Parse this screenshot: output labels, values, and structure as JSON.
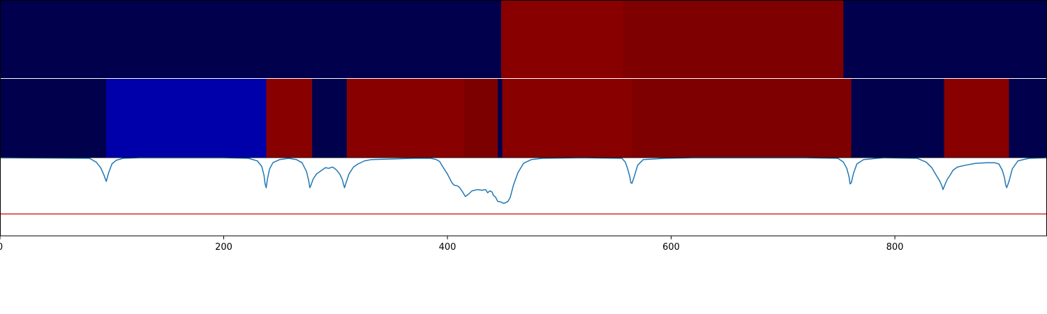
{
  "chart_data": [
    {
      "type": "heatmap",
      "xlim": [
        0,
        936
      ],
      "segments": [
        {
          "start": 0,
          "end": 448,
          "color": "#00004c"
        },
        {
          "start": 448,
          "end": 557,
          "color": "#880000"
        },
        {
          "start": 557,
          "end": 754,
          "color": "#7f0000"
        },
        {
          "start": 754,
          "end": 936,
          "color": "#00004c"
        }
      ]
    },
    {
      "type": "heatmap",
      "xlim": [
        0,
        936
      ],
      "segments": [
        {
          "start": 0,
          "end": 95,
          "color": "#00004c"
        },
        {
          "start": 95,
          "end": 238,
          "color": "#0000ab"
        },
        {
          "start": 238,
          "end": 279,
          "color": "#880000"
        },
        {
          "start": 279,
          "end": 310,
          "color": "#00004c"
        },
        {
          "start": 310,
          "end": 415,
          "color": "#880000"
        },
        {
          "start": 415,
          "end": 445,
          "color": "#7d0000"
        },
        {
          "start": 445,
          "end": 449,
          "color": "#00004c"
        },
        {
          "start": 449,
          "end": 565,
          "color": "#880000"
        },
        {
          "start": 565,
          "end": 761,
          "color": "#7f0000"
        },
        {
          "start": 761,
          "end": 844,
          "color": "#00004c"
        },
        {
          "start": 844,
          "end": 902,
          "color": "#880000"
        },
        {
          "start": 902,
          "end": 936,
          "color": "#00004c"
        }
      ]
    },
    {
      "type": "line",
      "xlim": [
        0,
        936
      ],
      "ylim": [
        -0.25,
        1.0
      ],
      "threshold": 0.1,
      "threshold_color": "#d62728",
      "line_color": "#1f77b4",
      "x_ticks": [
        {
          "value": 0,
          "label": "0"
        },
        {
          "value": 200,
          "label": "200"
        },
        {
          "value": 400,
          "label": "400"
        },
        {
          "value": 600,
          "label": "600"
        },
        {
          "value": 800,
          "label": "800"
        }
      ],
      "series": [
        {
          "x": [
            0,
            80,
            86,
            90,
            93,
            95,
            97,
            100,
            104,
            110,
            125,
            200,
            222,
            230,
            234,
            236,
            237,
            238,
            239,
            241,
            244,
            250,
            258,
            265,
            270,
            274,
            276,
            277,
            278,
            280,
            283,
            287,
            291,
            294,
            297,
            299,
            301,
            304,
            306,
            307,
            308,
            309,
            312,
            316,
            320,
            326,
            332,
            370,
            385,
            390,
            393,
            396,
            400,
            404,
            406,
            409,
            411,
            414,
            416,
            419,
            422,
            427,
            431,
            434,
            436,
            438,
            440,
            441,
            443,
            445,
            446,
            448,
            450,
            452,
            454,
            456,
            459,
            463,
            468,
            475,
            485,
            520,
            556,
            559,
            561,
            563,
            564,
            565,
            567,
            570,
            575,
            595,
            620,
            720,
            749,
            754,
            757,
            759,
            760,
            761,
            763,
            766,
            772,
            790,
            820,
            828,
            833,
            837,
            840,
            842,
            843,
            845,
            847,
            849,
            852,
            856,
            863,
            872,
            882,
            889,
            893,
            896,
            898,
            899,
            900,
            902,
            905,
            910,
            920,
            936
          ],
          "y": [
            1.0,
            0.99,
            0.93,
            0.84,
            0.72,
            0.62,
            0.75,
            0.9,
            0.96,
            0.99,
            1.0,
            1.0,
            0.99,
            0.95,
            0.86,
            0.72,
            0.58,
            0.52,
            0.65,
            0.82,
            0.92,
            0.97,
            0.99,
            0.97,
            0.92,
            0.78,
            0.63,
            0.52,
            0.56,
            0.66,
            0.74,
            0.79,
            0.84,
            0.83,
            0.85,
            0.83,
            0.8,
            0.73,
            0.65,
            0.58,
            0.52,
            0.58,
            0.74,
            0.85,
            0.9,
            0.95,
            0.97,
            0.99,
            0.99,
            0.97,
            0.94,
            0.85,
            0.74,
            0.6,
            0.56,
            0.55,
            0.52,
            0.44,
            0.38,
            0.42,
            0.47,
            0.49,
            0.48,
            0.49,
            0.44,
            0.47,
            0.45,
            0.4,
            0.37,
            0.3,
            0.3,
            0.29,
            0.27,
            0.28,
            0.3,
            0.36,
            0.56,
            0.76,
            0.91,
            0.97,
            0.99,
            1.0,
            0.99,
            0.93,
            0.83,
            0.7,
            0.6,
            0.59,
            0.7,
            0.88,
            0.97,
            0.99,
            1.0,
            1.0,
            0.99,
            0.93,
            0.83,
            0.7,
            0.58,
            0.6,
            0.75,
            0.9,
            0.97,
            1.0,
            0.99,
            0.93,
            0.84,
            0.72,
            0.63,
            0.55,
            0.49,
            0.58,
            0.66,
            0.71,
            0.8,
            0.85,
            0.88,
            0.91,
            0.92,
            0.92,
            0.9,
            0.8,
            0.68,
            0.57,
            0.52,
            0.62,
            0.82,
            0.95,
            0.99,
            1.0
          ]
        }
      ]
    }
  ]
}
